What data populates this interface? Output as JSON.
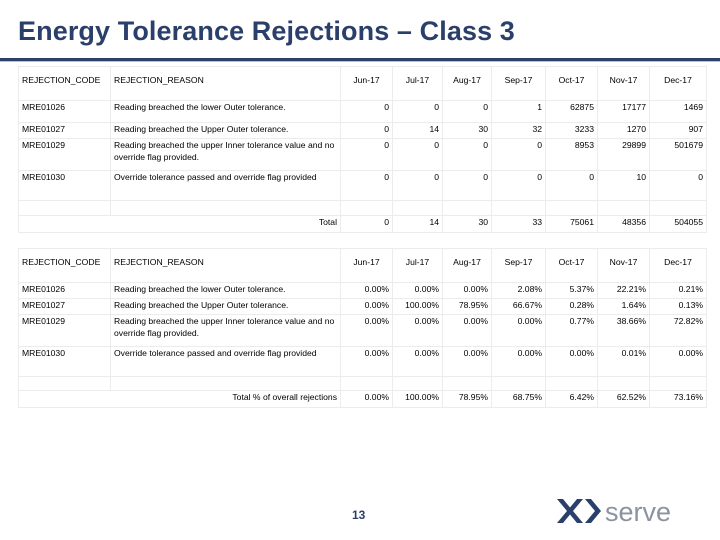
{
  "title": "Energy Tolerance Rejections – Class 3",
  "table1": {
    "headers": [
      "REJECTION_CODE",
      "REJECTION_REASON",
      "Jun-17",
      "Jul-17",
      "Aug-17",
      "Sep-17",
      "Oct-17",
      "Nov-17",
      "Dec-17"
    ],
    "rows": [
      {
        "code": "MRE01026",
        "reason": "Reading breached the lower Outer tolerance.",
        "values": [
          "0",
          "0",
          "0",
          "1",
          "62875",
          "17177",
          "1469"
        ]
      },
      {
        "code": "MRE01027",
        "reason": "Reading breached the Upper Outer tolerance.",
        "values": [
          "0",
          "14",
          "30",
          "32",
          "3233",
          "1270",
          "907"
        ]
      },
      {
        "code": "MRE01029",
        "reason": "Reading breached the upper Inner tolerance value and no override flag provided.",
        "values": [
          "0",
          "0",
          "0",
          "0",
          "8953",
          "29899",
          "501679"
        ]
      },
      {
        "code": "MRE01030",
        "reason": "Override tolerance passed and override flag provided",
        "values": [
          "0",
          "0",
          "0",
          "0",
          "0",
          "10",
          "0"
        ]
      }
    ],
    "total_label": "Total",
    "total_values": [
      "0",
      "14",
      "30",
      "33",
      "75061",
      "48356",
      "504055"
    ]
  },
  "table2": {
    "headers": [
      "REJECTION_CODE",
      "REJECTION_REASON",
      "Jun-17",
      "Jul-17",
      "Aug-17",
      "Sep-17",
      "Oct-17",
      "Nov-17",
      "Dec-17"
    ],
    "rows": [
      {
        "code": "MRE01026",
        "reason": "Reading breached the lower Outer tolerance.",
        "values": [
          "0.00%",
          "0.00%",
          "0.00%",
          "2.08%",
          "5.37%",
          "22.21%",
          "0.21%"
        ]
      },
      {
        "code": "MRE01027",
        "reason": "Reading breached the Upper Outer tolerance.",
        "values": [
          "0.00%",
          "100.00%",
          "78.95%",
          "66.67%",
          "0.28%",
          "1.64%",
          "0.13%"
        ]
      },
      {
        "code": "MRE01029",
        "reason": "Reading breached the upper Inner tolerance value and no override flag provided.",
        "values": [
          "0.00%",
          "0.00%",
          "0.00%",
          "0.00%",
          "0.77%",
          "38.66%",
          "72.82%"
        ]
      },
      {
        "code": "MRE01030",
        "reason": "Override tolerance passed and override flag provided",
        "values": [
          "0.00%",
          "0.00%",
          "0.00%",
          "0.00%",
          "0.00%",
          "0.01%",
          "0.00%"
        ]
      }
    ],
    "total_label": "Total % of overall rejections",
    "total_values": [
      "0.00%",
      "100.00%",
      "78.95%",
      "68.75%",
      "6.42%",
      "62.52%",
      "73.16%"
    ]
  },
  "page_number": "13",
  "logo": {
    "text": "xoserve",
    "name": "xoserve-logo",
    "color_mark": "#2b3f6b",
    "color_text": "#8c93a0"
  }
}
